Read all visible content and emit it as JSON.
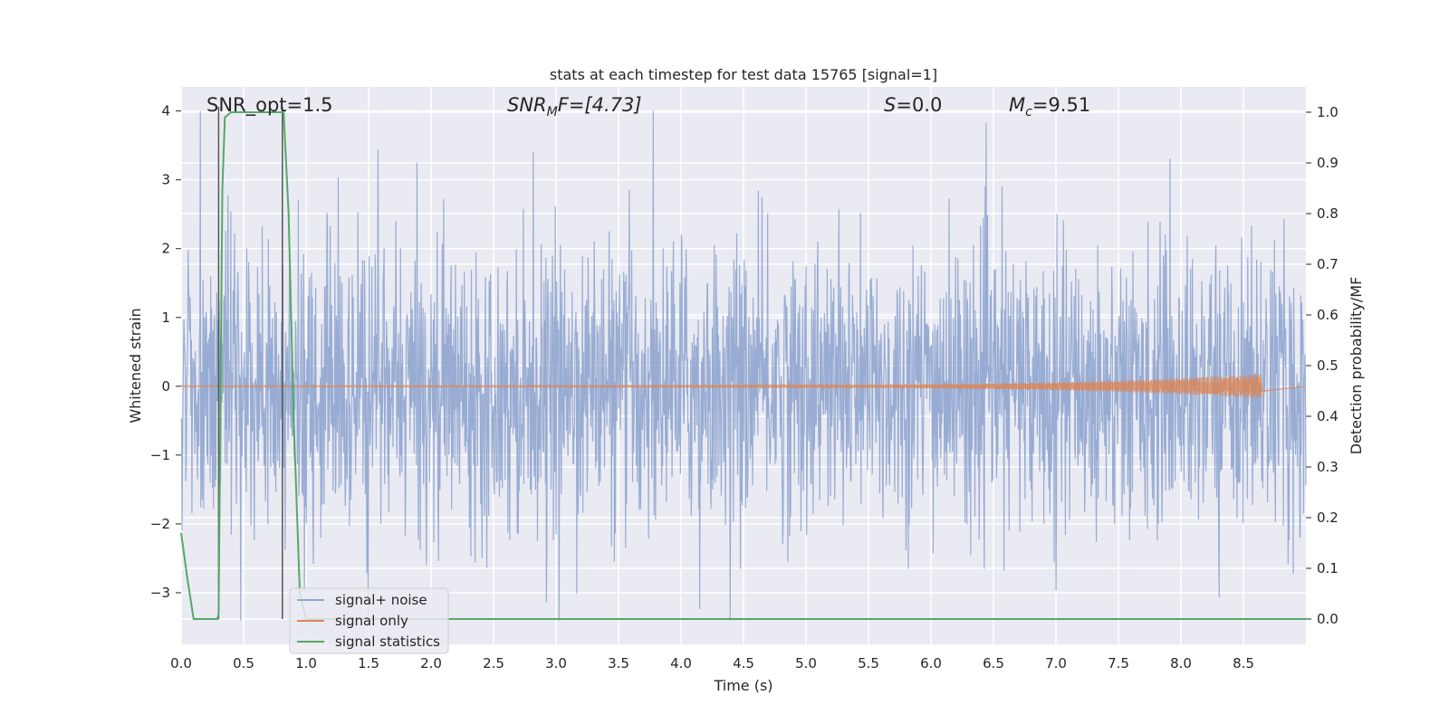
{
  "chart_data": {
    "type": "line",
    "title": "stats at each timestep for test data 15765 [signal=1]",
    "xlabel": "Time (s)",
    "ylabel": "Whitened strain",
    "y2label": "Detection probability/MF",
    "xlim": [
      0,
      9.0
    ],
    "ylim": [
      -3.75,
      4.35
    ],
    "y2lim": [
      -0.05,
      1.05
    ],
    "xticks": [
      "0.0",
      "0.5",
      "1.0",
      "1.5",
      "2.0",
      "2.5",
      "3.0",
      "3.5",
      "4.0",
      "4.5",
      "5.0",
      "5.5",
      "6.0",
      "6.5",
      "7.0",
      "7.5",
      "8.0",
      "8.5"
    ],
    "yticks": [
      "−3",
      "−2",
      "−1",
      "0",
      "1",
      "2",
      "3",
      "4"
    ],
    "y2ticks": [
      "0.0",
      "0.1",
      "0.2",
      "0.3",
      "0.4",
      "0.5",
      "0.6",
      "0.7",
      "0.8",
      "0.9",
      "1.0"
    ],
    "grid": true,
    "legend_placement": "lower-left",
    "annotations": {
      "snr_opt": "SNR_opt=1.5",
      "snr_mf_label": "SNR",
      "snr_mf_sub": "M",
      "snr_mf_rest": "F=[4.73]",
      "s_label": "S",
      "s_rest": "=0.0",
      "mc_label": "M",
      "mc_sub": "c",
      "mc_rest": "=9.51"
    },
    "vlines": [
      0.3,
      0.81
    ],
    "series": [
      {
        "name": "signal+ noise",
        "color": "#8fa5cf",
        "envelope": {
          "x_range": [
            0,
            9.0
          ],
          "typical_min": -1.9,
          "typical_max": 1.8,
          "approx_min": -3.4,
          "approx_max": 4.0
        }
      },
      {
        "name": "signal only",
        "color": "#dd8452",
        "chirp": {
          "x_range": [
            0,
            8.65
          ],
          "amplitude_start": 0.01,
          "amplitude_end": 0.18
        }
      },
      {
        "name": "signal statistics",
        "color": "#55a868",
        "axis": "right",
        "x": [
          0.0,
          0.05,
          0.1,
          0.2,
          0.29,
          0.3,
          0.33,
          0.35,
          0.4,
          0.5,
          0.6,
          0.7,
          0.8,
          0.82,
          0.86,
          0.9,
          0.95,
          1.0,
          1.5,
          2.0,
          3.0,
          4.0,
          5.0,
          6.0,
          7.0,
          8.0,
          9.0
        ],
        "values": [
          0.17,
          0.08,
          0.0,
          0.0,
          0.0,
          0.01,
          0.85,
          0.99,
          1.0,
          1.0,
          1.0,
          1.0,
          1.0,
          1.0,
          0.8,
          0.4,
          0.05,
          0.0,
          0.0,
          0.0,
          0.0,
          0.0,
          0.0,
          0.0,
          0.0,
          0.0,
          0.0
        ]
      }
    ]
  }
}
